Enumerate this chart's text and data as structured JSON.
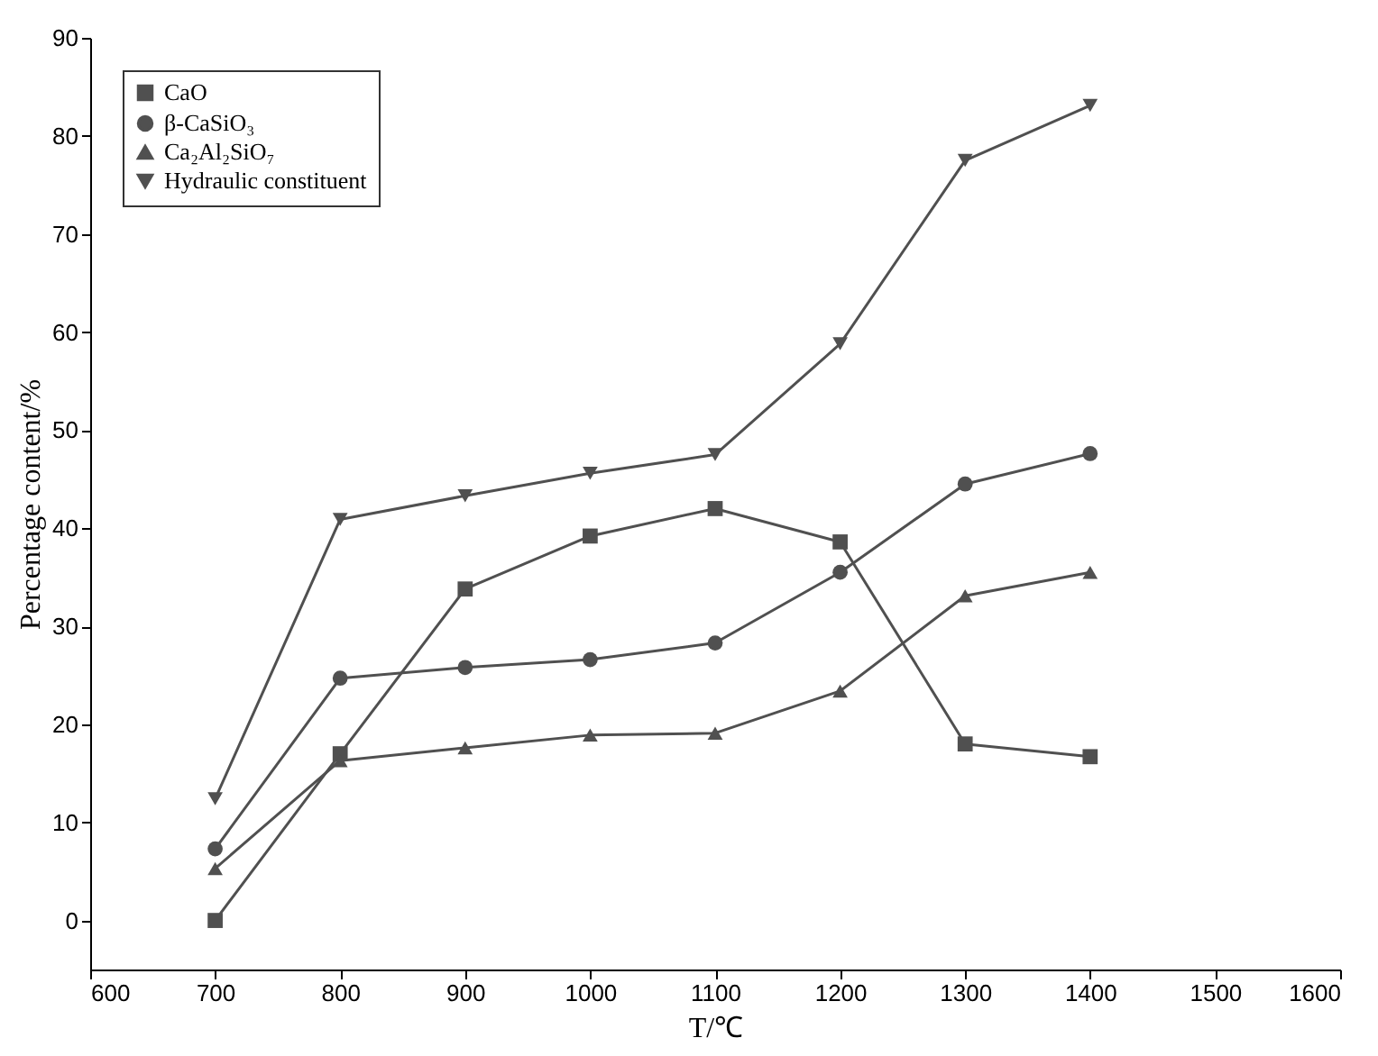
{
  "chart_data": {
    "type": "line",
    "xlabel": "T/℃",
    "ylabel": "Percentage content/%",
    "x": [
      700,
      800,
      900,
      1000,
      1100,
      1200,
      1300,
      1400
    ],
    "series": [
      {
        "name": "CaO",
        "color": "#505050",
        "marker": "square",
        "values": [
          0,
          17,
          33.8,
          39.2,
          42,
          38.6,
          18,
          16.7
        ]
      },
      {
        "name": "β-CaSiO₃",
        "color": "#505050",
        "marker": "circle",
        "values": [
          7.3,
          24.7,
          25.8,
          26.6,
          28.3,
          35.5,
          44.5,
          47.6
        ]
      },
      {
        "name": "Ca₂Al₂SiO₇",
        "color": "#505050",
        "marker": "triangle",
        "values": [
          5.3,
          16.3,
          17.6,
          18.9,
          19.1,
          23.4,
          33.1,
          35.5
        ]
      },
      {
        "name": "Hydraulic constituent",
        "color": "#505050",
        "marker": "triangle-down",
        "values": [
          12.4,
          40.9,
          43.3,
          45.6,
          47.5,
          58.8,
          77.5,
          83.1
        ]
      }
    ],
    "xlim": [
      600,
      1600
    ],
    "xticks": [
      600,
      700,
      800,
      900,
      1000,
      1100,
      1200,
      1300,
      1400,
      1500,
      1600
    ],
    "ylim": [
      -5,
      90
    ],
    "yticks": [
      0,
      10,
      20,
      30,
      40,
      50,
      60,
      70,
      80,
      90
    ],
    "grid": false,
    "legend": "top left",
    "line_style": "solid"
  }
}
